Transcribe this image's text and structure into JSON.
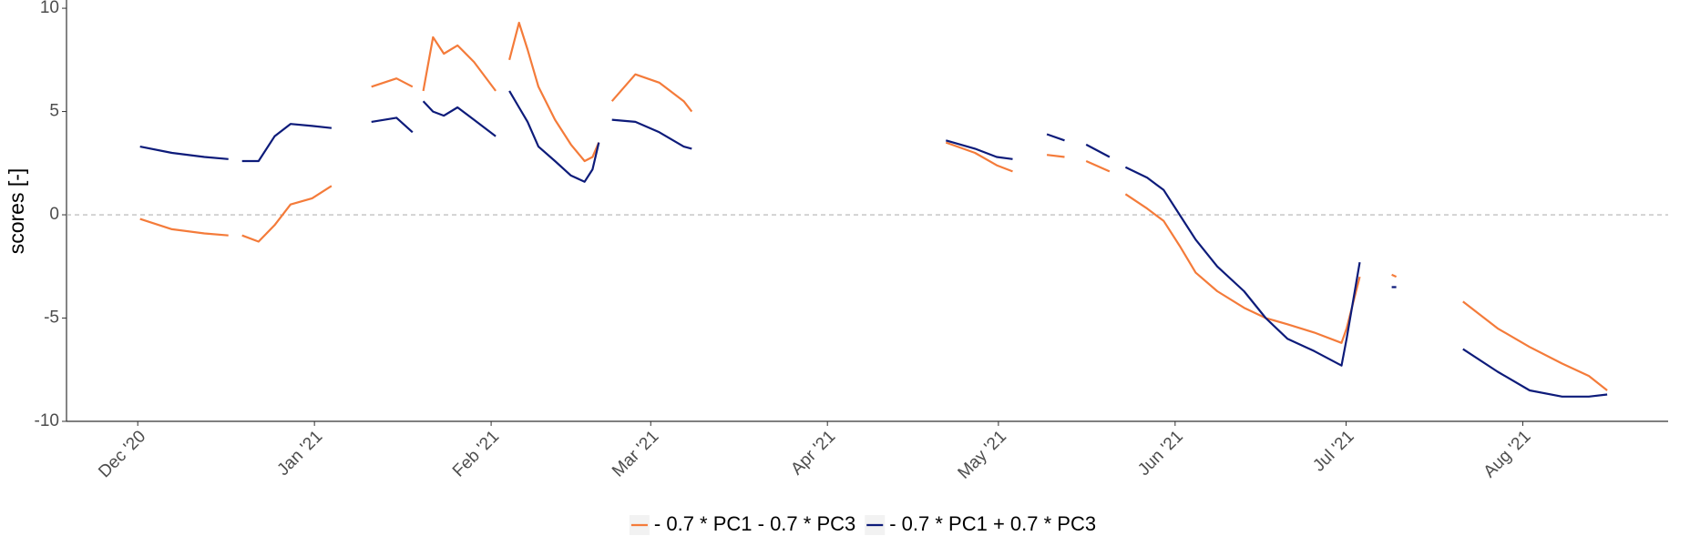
{
  "chart_data": {
    "type": "line",
    "y_label": "scores [-]",
    "x": [
      0.4,
      6.0,
      11.7,
      15.9,
      17.0,
      18.3,
      21.2,
      24.0,
      26.8,
      30.6,
      34.0,
      37.4,
      41.0,
      45.4,
      48.2,
      49.1,
      50.1,
      51.8,
      53.7,
      56.1,
      59.0,
      62.8,
      64.1,
      65.2,
      66.9,
      68.4,
      70.3,
      73.2,
      76.0,
      78.4,
      79.8,
      80.9,
      82.0,
      83.2,
      87.3,
      91.5,
      95.8,
      97.2,
      119.5,
      141.8,
      146.9,
      150.7,
      153.5,
      156.5,
      159.5,
      162.6,
      164.3,
      166.4,
      170.5,
      172.0,
      173.3,
      177.1,
      180.0,
      182.8,
      185.6,
      189.4,
      194.1,
      197.9,
      201.7,
      206.4,
      211.2,
      212.1,
      214.4,
      217.4,
      220.0,
      220.8,
      226.3,
      232.5,
      238.6,
      244.2,
      249.9,
      254.6,
      257.8
    ],
    "series": [
      {
        "name": "- 0.7 * PC1 - 0.7 * PC3",
        "color": "#f47b3a",
        "values": [
          -0.2,
          -0.7,
          -0.9,
          -1.0,
          null,
          -1.0,
          -1.3,
          -0.5,
          0.5,
          0.8,
          1.4,
          null,
          6.2,
          6.6,
          6.2,
          null,
          6.0,
          8.6,
          7.8,
          8.2,
          7.4,
          6.0,
          null,
          7.5,
          9.3,
          8.0,
          6.2,
          4.6,
          3.4,
          2.6,
          2.8,
          3.5,
          null,
          5.5,
          6.8,
          6.4,
          5.5,
          5.0,
          null,
          3.5,
          3.0,
          2.4,
          2.1,
          null,
          2.9,
          2.8,
          null,
          2.6,
          2.1,
          null,
          1.0,
          0.3,
          -0.3,
          -1.5,
          -2.8,
          -3.7,
          -4.5,
          -5.0,
          -5.3,
          -5.7,
          -6.2,
          -5.5,
          -3.0,
          null,
          -2.9,
          -3.0,
          null,
          -4.2,
          -5.5,
          -6.4,
          -7.2,
          -7.8,
          -8.5
        ]
      },
      {
        "name": "- 0.7 * PC1 + 0.7 * PC3",
        "color": "#0d1b7a",
        "values": [
          3.3,
          3.0,
          2.8,
          2.7,
          null,
          2.6,
          2.6,
          3.8,
          4.4,
          4.3,
          4.2,
          null,
          4.5,
          4.7,
          4.0,
          null,
          5.5,
          5.0,
          4.8,
          5.2,
          4.6,
          3.8,
          null,
          6.0,
          5.2,
          4.5,
          3.3,
          2.6,
          1.9,
          1.6,
          2.2,
          3.5,
          null,
          4.6,
          4.5,
          4.0,
          3.3,
          3.2,
          null,
          3.6,
          3.2,
          2.8,
          2.7,
          null,
          3.9,
          3.6,
          null,
          3.4,
          2.8,
          null,
          2.3,
          1.8,
          1.2,
          0.0,
          -1.2,
          -2.5,
          -3.7,
          -5.0,
          -6.0,
          -6.6,
          -7.3,
          -6.0,
          -2.3,
          null,
          -3.5,
          -3.5,
          null,
          -6.5,
          -7.6,
          -8.5,
          -8.8,
          -8.8,
          -8.7
        ]
      }
    ],
    "xlim": [
      -12.5,
      268.5
    ],
    "xticks": [
      {
        "value": 0,
        "label": "Dec '20"
      },
      {
        "value": 31,
        "label": "Jan '21"
      },
      {
        "value": 62,
        "label": "Feb '21"
      },
      {
        "value": 90,
        "label": "Mar '21"
      },
      {
        "value": 121,
        "label": "Apr '21"
      },
      {
        "value": 151,
        "label": "May '21"
      },
      {
        "value": 182,
        "label": "Jun '21"
      },
      {
        "value": 212,
        "label": "Jul '21"
      },
      {
        "value": 243,
        "label": "Aug '21"
      }
    ],
    "ylim": [
      -10,
      10.4
    ],
    "yticks": [
      10,
      5,
      0,
      -5,
      -10
    ],
    "reference_line": 0,
    "legend": "bottom"
  }
}
